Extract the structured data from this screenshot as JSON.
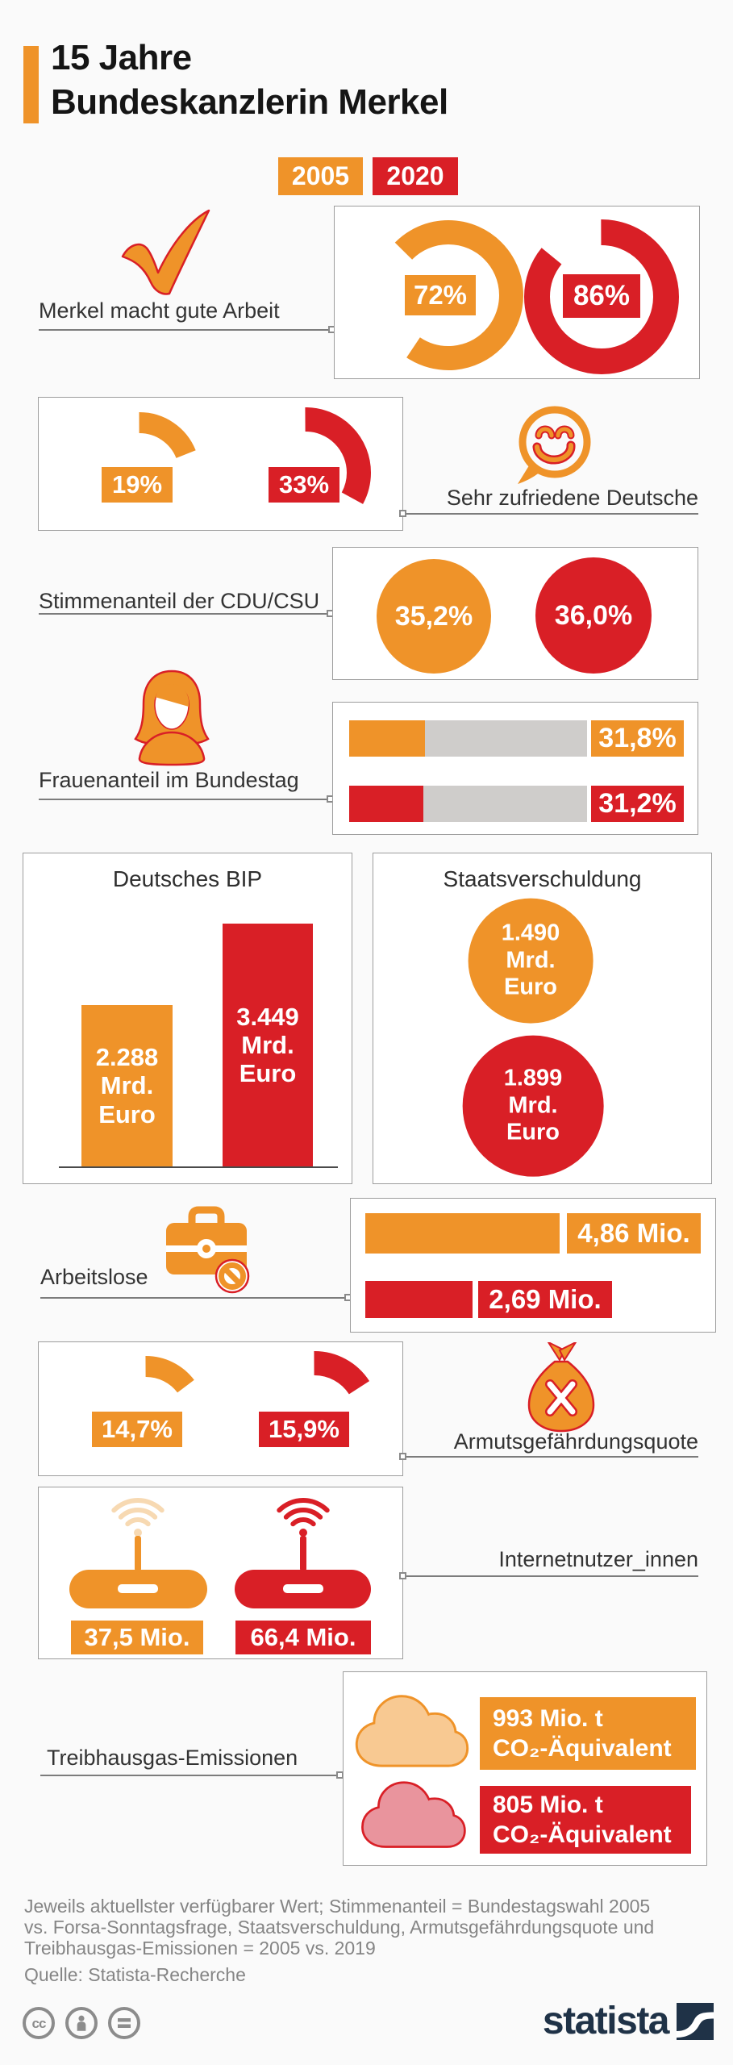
{
  "header": {
    "title_line1": "15 Jahre",
    "title_line2": "Bundeskanzlerin Merkel"
  },
  "legend": {
    "label_2005": "2005",
    "label_2020": "2020"
  },
  "colors": {
    "orange_2005": "#EF9329",
    "red_2020": "#D91F26",
    "track_gray": "#CFCDCB",
    "brand_navy": "#1F3247"
  },
  "sections": {
    "approval": {
      "label": "Merkel macht gute Arbeit",
      "value_2005": "72%",
      "value_2020": "86%"
    },
    "satisfaction": {
      "label": "Sehr zufriedene Deutsche",
      "value_2005": "19%",
      "value_2020": "33%"
    },
    "vote_share": {
      "label": "Stimmenanteil der CDU/CSU",
      "value_2005": "35,2%",
      "value_2020": "36,0%"
    },
    "women": {
      "label": "Frauenanteil im Bundestag",
      "value_2005": "31,8%",
      "value_2020": "31,2%"
    },
    "gdp": {
      "title": "Deutsches BIP",
      "value_2005": "2.288 Mrd. Euro",
      "value_2020": "3.449 Mrd. Euro"
    },
    "debt": {
      "title": "Staatsverschuldung",
      "value_2005": "1.490 Mrd. Euro",
      "value_2020": "1.899 Mrd. Euro"
    },
    "unemployment": {
      "label": "Arbeitslose",
      "value_2005": "4,86 Mio.",
      "value_2020": "2,69 Mio."
    },
    "poverty": {
      "label": "Armutsgefährdungsquote",
      "value_2005": "14,7%",
      "value_2020": "15,9%"
    },
    "internet": {
      "label": "Internetnutzer_innen",
      "value_2005": "37,5 Mio.",
      "value_2020": "66,4 Mio."
    },
    "emissions": {
      "label": "Treibhausgas-Emissionen",
      "value_2005_amount": "993 Mio. t",
      "value_2020_amount": "805 Mio. t",
      "unit_line": "CO₂-Äquivalent"
    }
  },
  "footer": {
    "note_line1": "Jeweils aktuellster verfügbarer Wert; Stimmenanteil = Bundestagswahl 2005",
    "note_line2": "vs. Forsa-Sonntagsfrage, Staatsverschuldung, Armutsgefährdungsquote und",
    "note_line3": "Treibhausgas-Emissionen = 2005 vs. 2019",
    "source": "Quelle: Statista-Recherche",
    "brand": "statista",
    "cc_label": "cc"
  },
  "chart_data": [
    {
      "type": "donut-pair",
      "metric": "Merkel macht gute Arbeit",
      "unit": "%",
      "categories": [
        "2005",
        "2020"
      ],
      "values": {
        "2005": 72,
        "2020": 86
      }
    },
    {
      "type": "donut-pair",
      "metric": "Sehr zufriedene Deutsche",
      "unit": "%",
      "categories": [
        "2005",
        "2020"
      ],
      "values": {
        "2005": 19,
        "2020": 33
      }
    },
    {
      "type": "circle-pair",
      "metric": "Stimmenanteil der CDU/CSU",
      "unit": "%",
      "categories": [
        "2005",
        "2020"
      ],
      "values": {
        "2005": 35.2,
        "2020": 36.0
      }
    },
    {
      "type": "bar-pair",
      "metric": "Frauenanteil im Bundestag",
      "unit": "%",
      "axis_max": 100,
      "categories": [
        "2005",
        "2020"
      ],
      "values": {
        "2005": 31.8,
        "2020": 31.2
      }
    },
    {
      "type": "bar",
      "metric": "Deutsches BIP",
      "unit": "Mrd. Euro",
      "categories": [
        "2005",
        "2020"
      ],
      "values": {
        "2005": 2288,
        "2020": 3449
      }
    },
    {
      "type": "circle-pair",
      "metric": "Staatsverschuldung",
      "unit": "Mrd. Euro",
      "categories": [
        "2005",
        "2020"
      ],
      "values": {
        "2005": 1490,
        "2020": 1899
      }
    },
    {
      "type": "bar-pair",
      "metric": "Arbeitslose",
      "unit": "Mio.",
      "categories": [
        "2005",
        "2020"
      ],
      "values": {
        "2005": 4.86,
        "2020": 2.69
      }
    },
    {
      "type": "donut-pair",
      "metric": "Armutsgefährdungsquote",
      "unit": "%",
      "categories": [
        "2005",
        "2020"
      ],
      "values": {
        "2005": 14.7,
        "2020": 15.9
      }
    },
    {
      "type": "pictogram",
      "metric": "Internetnutzer_innen",
      "unit": "Mio.",
      "categories": [
        "2005",
        "2020"
      ],
      "values": {
        "2005": 37.5,
        "2020": 66.4
      }
    },
    {
      "type": "pictogram",
      "metric": "Treibhausgas-Emissionen",
      "unit": "Mio. t CO2-Äquivalent",
      "categories": [
        "2005",
        "2020"
      ],
      "values": {
        "2005": 993,
        "2020": 805
      }
    }
  ]
}
